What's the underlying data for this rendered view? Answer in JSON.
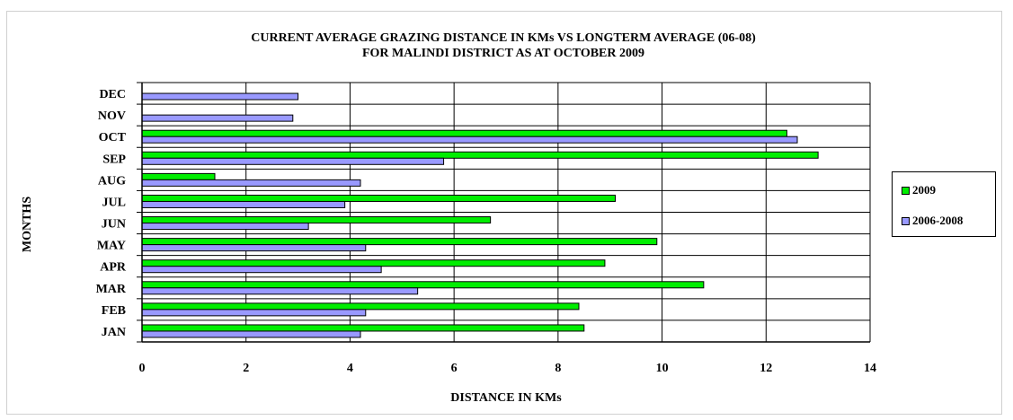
{
  "chart_data": {
    "type": "bar",
    "orientation": "horizontal",
    "title_lines": [
      "CURRENT AVERAGE GRAZING DISTANCE IN KMs VS LONGTERM AVERAGE (06-08)",
      "FOR MALINDI DISTRICT AS AT OCTOBER 2009"
    ],
    "xlabel": "DISTANCE IN KMs",
    "ylabel": "MONTHS",
    "categories": [
      "JAN",
      "FEB",
      "MAR",
      "APR",
      "MAY",
      "JUN",
      "JUL",
      "AUG",
      "SEP",
      "OCT",
      "NOV",
      "DEC"
    ],
    "series": [
      {
        "name": "2009",
        "color": "#00ee00",
        "values": [
          8.5,
          8.4,
          10.8,
          8.9,
          9.9,
          6.7,
          9.1,
          1.4,
          13.0,
          12.4,
          null,
          null
        ]
      },
      {
        "name": "2006-2008",
        "color": "#9999ff",
        "values": [
          4.2,
          4.3,
          5.3,
          4.6,
          4.3,
          3.2,
          3.9,
          4.2,
          5.8,
          12.6,
          2.9,
          3.0
        ]
      }
    ],
    "xlim": [
      0,
      14
    ],
    "xticks": [
      "0",
      "2",
      "4",
      "6",
      "8",
      "10",
      "12",
      "14"
    ],
    "grid": true,
    "legend_position": "right"
  }
}
